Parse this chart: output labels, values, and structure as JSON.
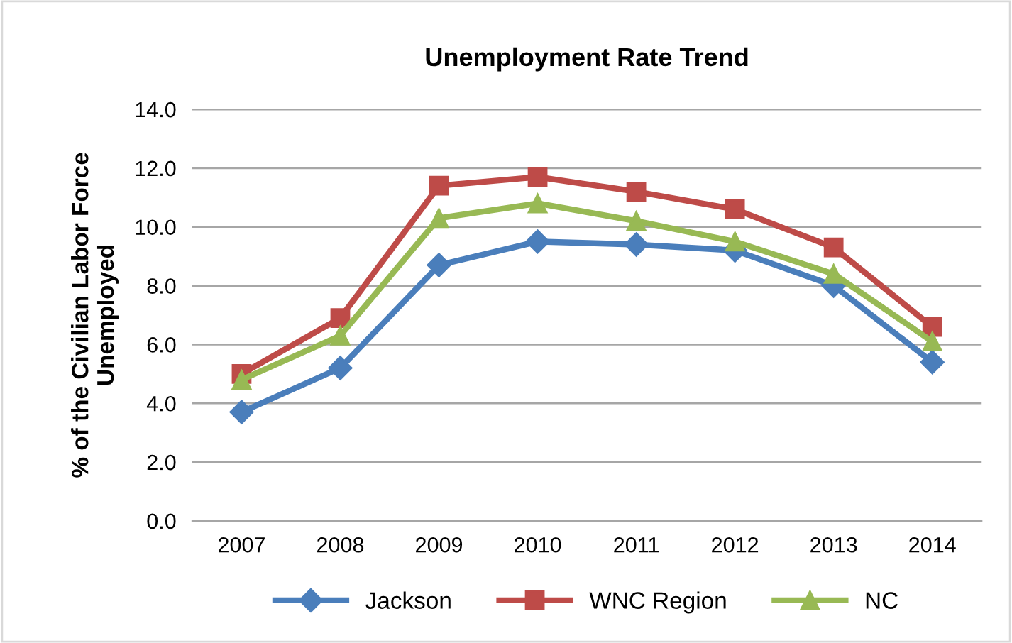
{
  "chart_data": {
    "type": "line",
    "title": "Unemployment Rate Trend",
    "ylabel": "% of the Civilian Labor Force\nUnemployed",
    "categories": [
      "2007",
      "2008",
      "2009",
      "2010",
      "2011",
      "2012",
      "2013",
      "2014"
    ],
    "series": [
      {
        "name": "Jackson",
        "color": "#4a7ebb",
        "marker": "diamond",
        "values": [
          3.7,
          5.2,
          8.7,
          9.5,
          9.4,
          9.2,
          8.0,
          5.4
        ]
      },
      {
        "name": "WNC Region",
        "color": "#be4b48",
        "marker": "square",
        "values": [
          5.0,
          6.9,
          11.4,
          11.7,
          11.2,
          10.6,
          9.3,
          6.6
        ]
      },
      {
        "name": "NC",
        "color": "#98b954",
        "marker": "triangle",
        "values": [
          4.8,
          6.3,
          10.3,
          10.8,
          10.2,
          9.5,
          8.4,
          6.1
        ]
      }
    ],
    "ylim": [
      0,
      14
    ],
    "yticks": [
      {
        "value": 0,
        "label": "0.0"
      },
      {
        "value": 2,
        "label": "2.0"
      },
      {
        "value": 4,
        "label": "4.0"
      },
      {
        "value": 6,
        "label": "6.0"
      },
      {
        "value": 8,
        "label": "8.0"
      },
      {
        "value": 10,
        "label": "10.0"
      },
      {
        "value": 12,
        "label": "12.0"
      },
      {
        "value": 14,
        "label": "14.0"
      }
    ],
    "grid": "y",
    "legend": "bottom",
    "line_style": "solid"
  }
}
